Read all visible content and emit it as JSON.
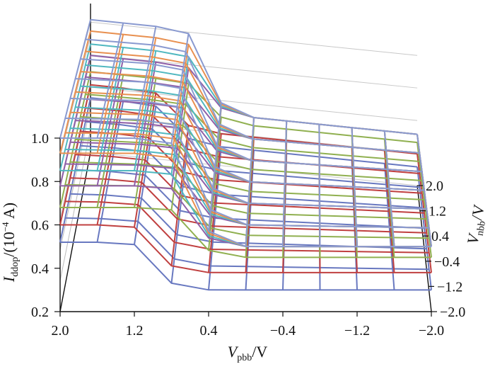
{
  "chart_data": {
    "type": "surface3d",
    "title": "",
    "zlabel_main": "I",
    "zlabel_sub": "ddop",
    "zlabel_unit": "/(10",
    "zlabel_exp": "−4",
    "zlabel_tail": " A)",
    "xlabel_main": "V",
    "xlabel_sub": "pbb",
    "xlabel_unit": "/V",
    "ylabel_main": "V",
    "ylabel_sub": "nbb",
    "ylabel_unit": "/V",
    "z_ticks": [
      "0.2",
      "0.4",
      "0.6",
      "0.8",
      "1.0"
    ],
    "x_ticks": [
      "2.0",
      "1.2",
      "0.4",
      "−0.4",
      "−1.2",
      "−2.0"
    ],
    "y_ticks": [
      "2.0",
      "1.2",
      "0.4",
      "−0.4",
      "−1.2",
      "−2.0"
    ],
    "zlim": [
      0.2,
      1.0
    ],
    "xlim": [
      2.0,
      -2.0
    ],
    "ylim": [
      -2.0,
      2.0
    ],
    "series": [
      {
        "color": "#8a9ad0",
        "step_vpbb": 0.55,
        "level_high": 1.0,
        "level_low": 0.5
      },
      {
        "color": "#e89050",
        "step_vpbb": 0.55,
        "level_high": 0.93,
        "level_low": 0.5
      },
      {
        "color": "#50b8c0",
        "step_vpbb": 0.55,
        "level_high": 0.85,
        "level_low": 0.5
      },
      {
        "color": "#9060a8",
        "step_vpbb": 0.55,
        "level_high": 0.78,
        "level_low": 0.5
      },
      {
        "color": "#90b050",
        "step_vpbb": 0.55,
        "level_high": 0.68,
        "level_low": 0.45
      },
      {
        "color": "#c04040",
        "step_vpbb": 0.95,
        "level_high": 0.6,
        "level_low": 0.38
      },
      {
        "color": "#6878c0",
        "step_vpbb": 0.95,
        "level_high": 0.52,
        "level_low": 0.3
      }
    ]
  }
}
